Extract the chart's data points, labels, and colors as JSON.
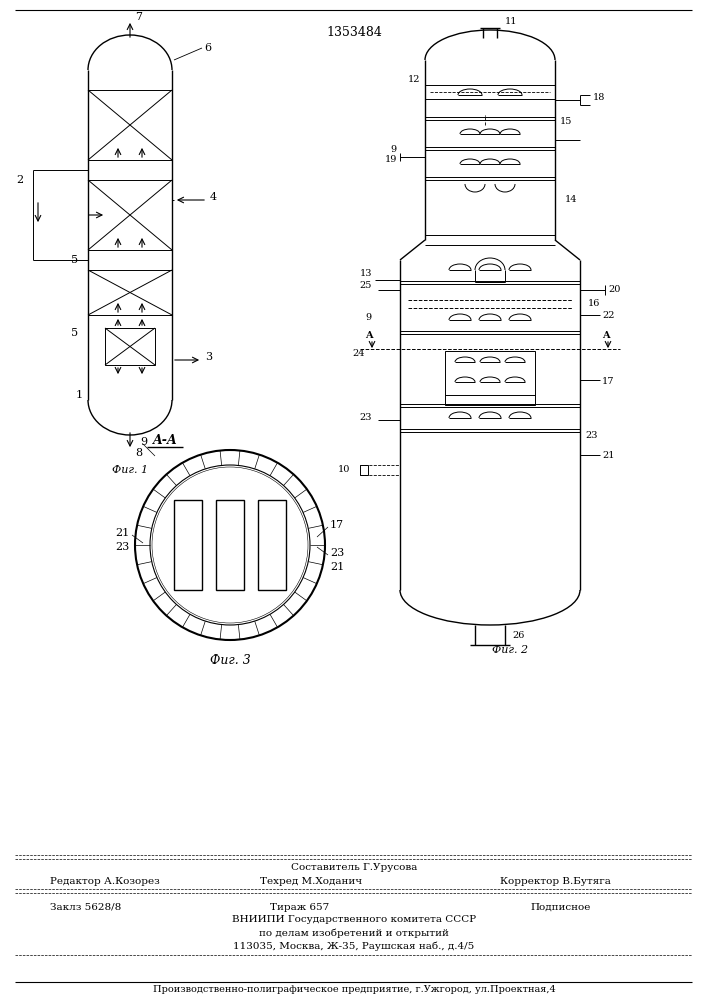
{
  "patent_number": "1353484",
  "background_color": "#ffffff",
  "line_color": "#000000",
  "fig1_label": "Фиг. 1",
  "fig2_label": "Фиг. 2",
  "fig3_label": "Фиг. 3",
  "section_label": "A-A",
  "footer_sestavitel": "Составитель Г.Урусова",
  "footer_editor": "Редактор А.Козорез",
  "footer_techred": "Техред М.Ходанич",
  "footer_corrector": "Корректор В.Бутяга",
  "footer_zakaz": "Заклз 5628/8",
  "footer_tirazh": "Тираж 657",
  "footer_podpisnoe": "Подписное",
  "footer_vnipi": "ВНИИПИ Государственного комитета СССР",
  "footer_po_delam": "по делам изобретений и открытий",
  "footer_address": "113035, Москва, Ж-35, Раушская наб., д.4/5",
  "footer_bottom": "Производственно-полиграфическое предприятие, г.Ужгород, ул.Проектная,4"
}
